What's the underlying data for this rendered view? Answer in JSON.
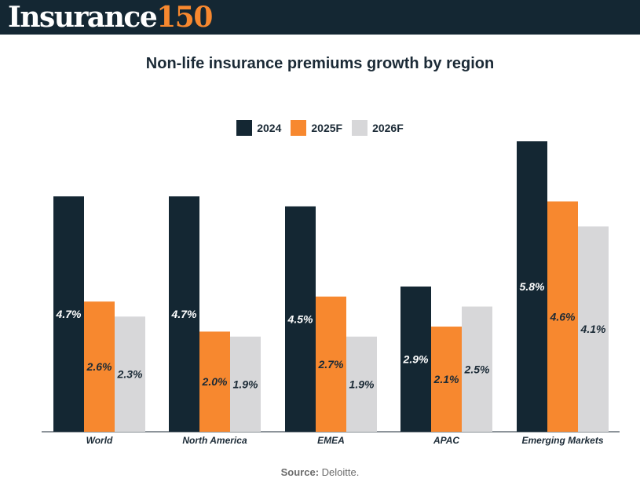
{
  "header": {
    "logo_word": "Insurance",
    "logo_number": "150"
  },
  "source": {
    "label": "Source:",
    "text": "Deloitte."
  },
  "colors": {
    "header_bg": "#142733",
    "accent": "#f7882f",
    "series_2024": "#142733",
    "series_2025F": "#f7882f",
    "series_2026F": "#d7d7d9"
  },
  "chart_data": {
    "type": "bar",
    "title": "Non-life insurance premiums growth by region",
    "xlabel": "",
    "ylabel": "",
    "ylim": [
      0,
      5.8
    ],
    "grid": false,
    "legend_position": "top-center",
    "categories": [
      "World",
      "North America",
      "EMEA",
      "APAC",
      "Emerging Markets"
    ],
    "series": [
      {
        "name": "2024",
        "color": "#142733",
        "label_color": "#ffffff",
        "values": [
          4.7,
          4.7,
          4.5,
          2.9,
          5.8
        ],
        "labels": [
          "4.7%",
          "4.7%",
          "4.5%",
          "2.9%",
          "5.8%"
        ]
      },
      {
        "name": "2025F",
        "color": "#f7882f",
        "label_color": "#1b2a36",
        "values": [
          2.6,
          2.0,
          2.7,
          2.1,
          4.6
        ],
        "labels": [
          "2.6%",
          "2.0%",
          "2.7%",
          "2.1%",
          "4.6%"
        ]
      },
      {
        "name": "2026F",
        "color": "#d7d7d9",
        "label_color": "#1b2a36",
        "values": [
          2.3,
          1.9,
          1.9,
          2.5,
          4.1
        ],
        "labels": [
          "2.3%",
          "1.9%",
          "1.9%",
          "2.5%",
          "4.1%"
        ]
      }
    ]
  }
}
